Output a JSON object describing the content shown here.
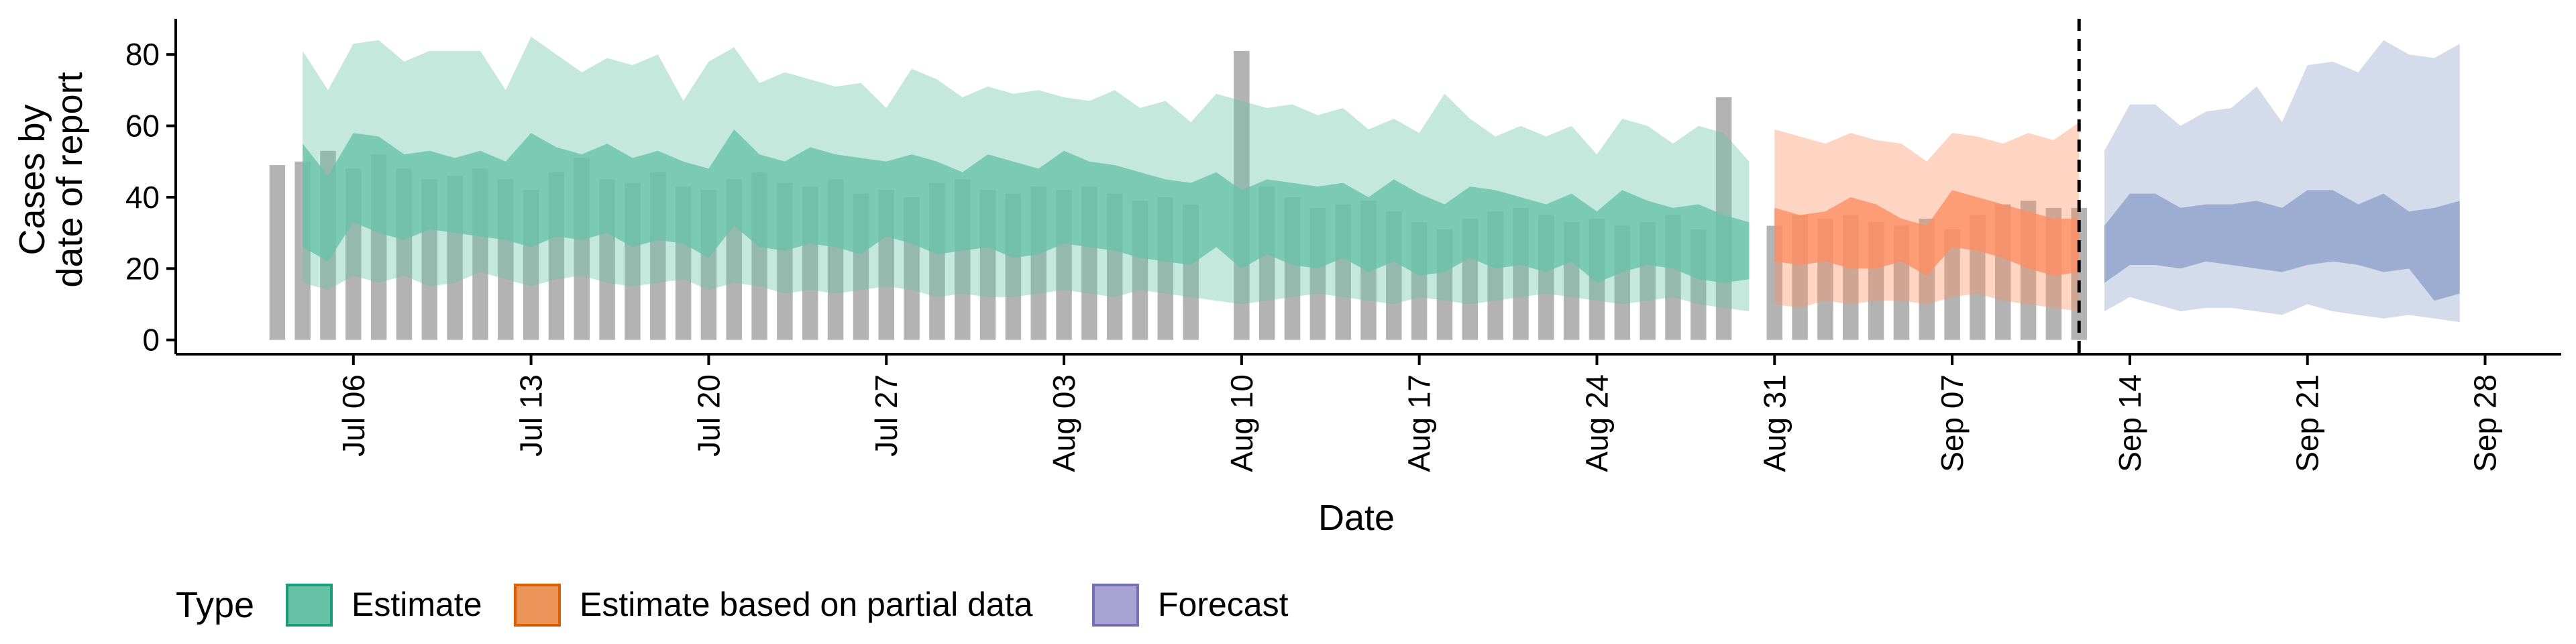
{
  "chart_data": {
    "type": "area",
    "xlabel": "Date",
    "ylabel_lines": [
      "Cases by",
      "date of report"
    ],
    "ylim": [
      -4,
      90
    ],
    "y_ticks": [
      0,
      20,
      40,
      60,
      80
    ],
    "x_start": "2020-07-03",
    "x_ticks": [
      {
        "date": "2020-07-06",
        "label": "Jul 06"
      },
      {
        "date": "2020-07-13",
        "label": "Jul 13"
      },
      {
        "date": "2020-07-20",
        "label": "Jul 20"
      },
      {
        "date": "2020-07-27",
        "label": "Jul 27"
      },
      {
        "date": "2020-08-03",
        "label": "Aug 03"
      },
      {
        "date": "2020-08-10",
        "label": "Aug 10"
      },
      {
        "date": "2020-08-17",
        "label": "Aug 17"
      },
      {
        "date": "2020-08-24",
        "label": "Aug 24"
      },
      {
        "date": "2020-08-31",
        "label": "Aug 31"
      },
      {
        "date": "2020-09-07",
        "label": "Sep 07"
      },
      {
        "date": "2020-09-14",
        "label": "Sep 14"
      },
      {
        "date": "2020-09-21",
        "label": "Sep 21"
      },
      {
        "date": "2020-09-28",
        "label": "Sep 28"
      }
    ],
    "xlim": [
      "2020-06-29",
      "2020-10-01"
    ],
    "forecast_line_date": "2020-09-12",
    "bars": {
      "dates": [
        "2020-07-03",
        "2020-07-04",
        "2020-07-05",
        "2020-07-06",
        "2020-07-07",
        "2020-07-08",
        "2020-07-09",
        "2020-07-10",
        "2020-07-11",
        "2020-07-12",
        "2020-07-13",
        "2020-07-14",
        "2020-07-15",
        "2020-07-16",
        "2020-07-17",
        "2020-07-18",
        "2020-07-19",
        "2020-07-20",
        "2020-07-21",
        "2020-07-22",
        "2020-07-23",
        "2020-07-24",
        "2020-07-25",
        "2020-07-26",
        "2020-07-27",
        "2020-07-28",
        "2020-07-29",
        "2020-07-30",
        "2020-07-31",
        "2020-08-01",
        "2020-08-02",
        "2020-08-03",
        "2020-08-04",
        "2020-08-05",
        "2020-08-06",
        "2020-08-07",
        "2020-08-08",
        "2020-08-10",
        "2020-08-11",
        "2020-08-12",
        "2020-08-13",
        "2020-08-14",
        "2020-08-15",
        "2020-08-16",
        "2020-08-17",
        "2020-08-18",
        "2020-08-19",
        "2020-08-20",
        "2020-08-21",
        "2020-08-22",
        "2020-08-23",
        "2020-08-24",
        "2020-08-25",
        "2020-08-26",
        "2020-08-27",
        "2020-08-28",
        "2020-08-29",
        "2020-08-31",
        "2020-09-01",
        "2020-09-02",
        "2020-09-03",
        "2020-09-04",
        "2020-09-05",
        "2020-09-06",
        "2020-09-07",
        "2020-09-08",
        "2020-09-09",
        "2020-09-10",
        "2020-09-11",
        "2020-09-12"
      ],
      "values": [
        49,
        50,
        53,
        48,
        52,
        48,
        45,
        46,
        48,
        45,
        42,
        47,
        51,
        45,
        44,
        47,
        43,
        42,
        45,
        47,
        44,
        43,
        45,
        41,
        42,
        40,
        44,
        45,
        42,
        41,
        43,
        42,
        43,
        41,
        39,
        40,
        38,
        81,
        43,
        40,
        37,
        38,
        39,
        36,
        33,
        31,
        34,
        36,
        37,
        35,
        33,
        34,
        32,
        33,
        35,
        31,
        68,
        32,
        35,
        34,
        35,
        33,
        32,
        34,
        31,
        35,
        38,
        39,
        37,
        37
      ],
      "color": "#b3b3b3"
    },
    "series": [
      {
        "name": "Estimate",
        "color": "#66c2a5",
        "x": [
          "2020-07-04",
          "2020-07-05",
          "2020-07-06",
          "2020-07-07",
          "2020-07-08",
          "2020-07-09",
          "2020-07-10",
          "2020-07-11",
          "2020-07-12",
          "2020-07-13",
          "2020-07-14",
          "2020-07-15",
          "2020-07-16",
          "2020-07-17",
          "2020-07-18",
          "2020-07-19",
          "2020-07-20",
          "2020-07-21",
          "2020-07-22",
          "2020-07-23",
          "2020-07-24",
          "2020-07-25",
          "2020-07-26",
          "2020-07-27",
          "2020-07-28",
          "2020-07-29",
          "2020-07-30",
          "2020-07-31",
          "2020-08-01",
          "2020-08-02",
          "2020-08-03",
          "2020-08-04",
          "2020-08-05",
          "2020-08-06",
          "2020-08-07",
          "2020-08-08",
          "2020-08-09",
          "2020-08-10",
          "2020-08-11",
          "2020-08-12",
          "2020-08-13",
          "2020-08-14",
          "2020-08-15",
          "2020-08-16",
          "2020-08-17",
          "2020-08-18",
          "2020-08-19",
          "2020-08-20",
          "2020-08-21",
          "2020-08-22",
          "2020-08-23",
          "2020-08-24",
          "2020-08-25",
          "2020-08-26",
          "2020-08-27",
          "2020-08-28",
          "2020-08-29",
          "2020-08-30"
        ],
        "outer_lower": [
          16,
          14,
          18,
          16,
          18,
          15,
          16,
          19,
          17,
          15,
          17,
          18,
          16,
          15,
          16,
          17,
          14,
          16,
          15,
          13,
          14,
          13,
          14,
          15,
          14,
          12,
          13,
          12,
          12,
          13,
          14,
          13,
          12,
          14,
          13,
          12,
          11,
          10,
          11,
          12,
          13,
          12,
          11,
          10,
          12,
          11,
          10,
          11,
          12,
          13,
          12,
          11,
          10,
          11,
          12,
          10,
          9,
          8
        ],
        "outer_upper": [
          81,
          70,
          83,
          84,
          78,
          81,
          81,
          81,
          70,
          85,
          80,
          75,
          79,
          77,
          80,
          67,
          78,
          82,
          72,
          75,
          73,
          71,
          72,
          65,
          76,
          73,
          68,
          71,
          69,
          70,
          68,
          67,
          70,
          65,
          67,
          61,
          69,
          67,
          65,
          66,
          63,
          65,
          59,
          62,
          58,
          69,
          62,
          57,
          60,
          57,
          60,
          52,
          62,
          60,
          55,
          60,
          58,
          50
        ],
        "inner_lower": [
          26,
          22,
          33,
          30,
          28,
          31,
          30,
          29,
          28,
          26,
          29,
          28,
          30,
          26,
          28,
          27,
          23,
          32,
          26,
          25,
          27,
          26,
          24,
          29,
          27,
          24,
          25,
          26,
          23,
          24,
          27,
          26,
          25,
          23,
          22,
          21,
          26,
          20,
          24,
          21,
          20,
          23,
          19,
          22,
          18,
          19,
          23,
          20,
          21,
          19,
          22,
          16,
          19,
          21,
          20,
          17,
          16,
          17
        ],
        "inner_upper": [
          55,
          46,
          58,
          57,
          52,
          53,
          51,
          53,
          50,
          58,
          54,
          52,
          55,
          51,
          53,
          50,
          48,
          59,
          52,
          50,
          54,
          52,
          51,
          50,
          52,
          50,
          47,
          52,
          50,
          48,
          53,
          50,
          49,
          47,
          45,
          44,
          47,
          42,
          45,
          44,
          43,
          44,
          40,
          45,
          41,
          38,
          43,
          42,
          40,
          38,
          41,
          36,
          42,
          39,
          37,
          38,
          35,
          33
        ]
      },
      {
        "name": "Estimate based on partial data",
        "color": "#fc8d62",
        "x": [
          "2020-08-31",
          "2020-09-01",
          "2020-09-02",
          "2020-09-03",
          "2020-09-04",
          "2020-09-05",
          "2020-09-06",
          "2020-09-07",
          "2020-09-08",
          "2020-09-09",
          "2020-09-10",
          "2020-09-11",
          "2020-09-12"
        ],
        "outer_lower": [
          10,
          9,
          11,
          10,
          11,
          11,
          10,
          12,
          13,
          11,
          10,
          9,
          8
        ],
        "outer_upper": [
          59,
          57,
          55,
          58,
          56,
          55,
          50,
          58,
          57,
          55,
          58,
          56,
          61
        ],
        "inner_lower": [
          22,
          21,
          22,
          20,
          20,
          22,
          18,
          26,
          25,
          23,
          20,
          18,
          19
        ],
        "inner_upper": [
          37,
          35,
          36,
          40,
          38,
          34,
          32,
          42,
          40,
          38,
          36,
          34,
          34
        ]
      },
      {
        "name": "Forecast",
        "color": "#8da0cb",
        "x": [
          "2020-09-13",
          "2020-09-14",
          "2020-09-15",
          "2020-09-16",
          "2020-09-17",
          "2020-09-18",
          "2020-09-19",
          "2020-09-20",
          "2020-09-21",
          "2020-09-22",
          "2020-09-23",
          "2020-09-24",
          "2020-09-25",
          "2020-09-26",
          "2020-09-27"
        ],
        "outer_lower": [
          8,
          12,
          10,
          8,
          9,
          9,
          8,
          7,
          10,
          8,
          7,
          6,
          7,
          6,
          5
        ],
        "outer_upper": [
          53,
          66,
          66,
          60,
          64,
          65,
          71,
          61,
          77,
          78,
          75,
          84,
          80,
          79,
          83
        ],
        "inner_lower": [
          16,
          21,
          21,
          20,
          22,
          21,
          20,
          19,
          21,
          22,
          21,
          19,
          20,
          11,
          13
        ],
        "inner_upper": [
          32,
          41,
          41,
          37,
          38,
          38,
          39,
          37,
          42,
          42,
          38,
          41,
          36,
          37,
          39
        ]
      }
    ],
    "legend": {
      "title": "Type",
      "placement": "bottom-left",
      "entries": [
        {
          "label": "Estimate",
          "fill": "#66c2a5",
          "border": "#1b9e77"
        },
        {
          "label": "Estimate based on partial data",
          "fill": "#eb955a",
          "border": "#d95f02"
        },
        {
          "label": "Forecast",
          "fill": "#a9a3d2",
          "border": "#7570b3"
        }
      ]
    },
    "grid": false
  }
}
